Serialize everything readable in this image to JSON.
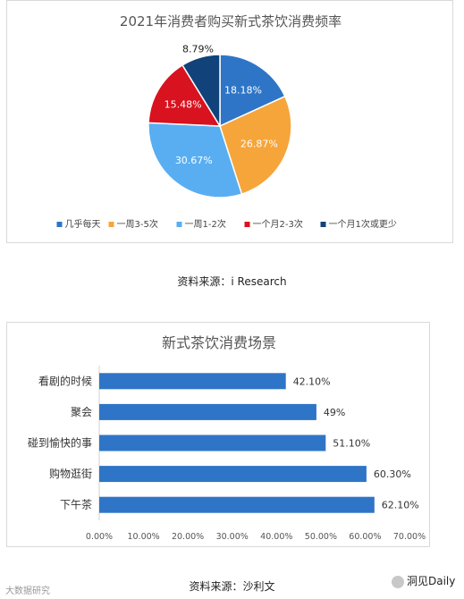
{
  "chart_data": [
    {
      "type": "pie",
      "title": "2021年消费者购买新式茶饮消费频率",
      "categories": [
        "几乎每天",
        "一周3-5次",
        "一周1-2次",
        "一个月2-3次",
        "一个月1次或更少"
      ],
      "values": [
        18.18,
        26.87,
        30.67,
        15.48,
        8.79
      ],
      "labels": [
        "18.18%",
        "26.87%",
        "30.67%",
        "15.48%",
        "8.79%"
      ],
      "colors": [
        "#2e75c7",
        "#f6a53b",
        "#59aef2",
        "#d9121f",
        "#12427a"
      ],
      "legend": "bottom",
      "source": "资料来源：i Research"
    },
    {
      "type": "bar",
      "orientation": "horizontal",
      "title": "新式茶饮消费场景",
      "categories": [
        "看剧的时候",
        "聚会",
        "碰到愉快的事",
        "购物逛街",
        "下午茶"
      ],
      "values": [
        42.1,
        49,
        51.1,
        60.3,
        62.1
      ],
      "labels": [
        "42.10%",
        "49%",
        "51.10%",
        "60.30%",
        "62.10%"
      ],
      "xlim": [
        0,
        70
      ],
      "xticks": [
        "0.00%",
        "10.00%",
        "20.00%",
        "30.00%",
        "40.00%",
        "50.00%",
        "60.00%",
        "70.00%"
      ],
      "color": "#2e75c7",
      "source": "资料来源：沙利文"
    }
  ],
  "watermarks": {
    "bottom_left": "大数据研究",
    "bottom_right": "洞见Daily"
  }
}
